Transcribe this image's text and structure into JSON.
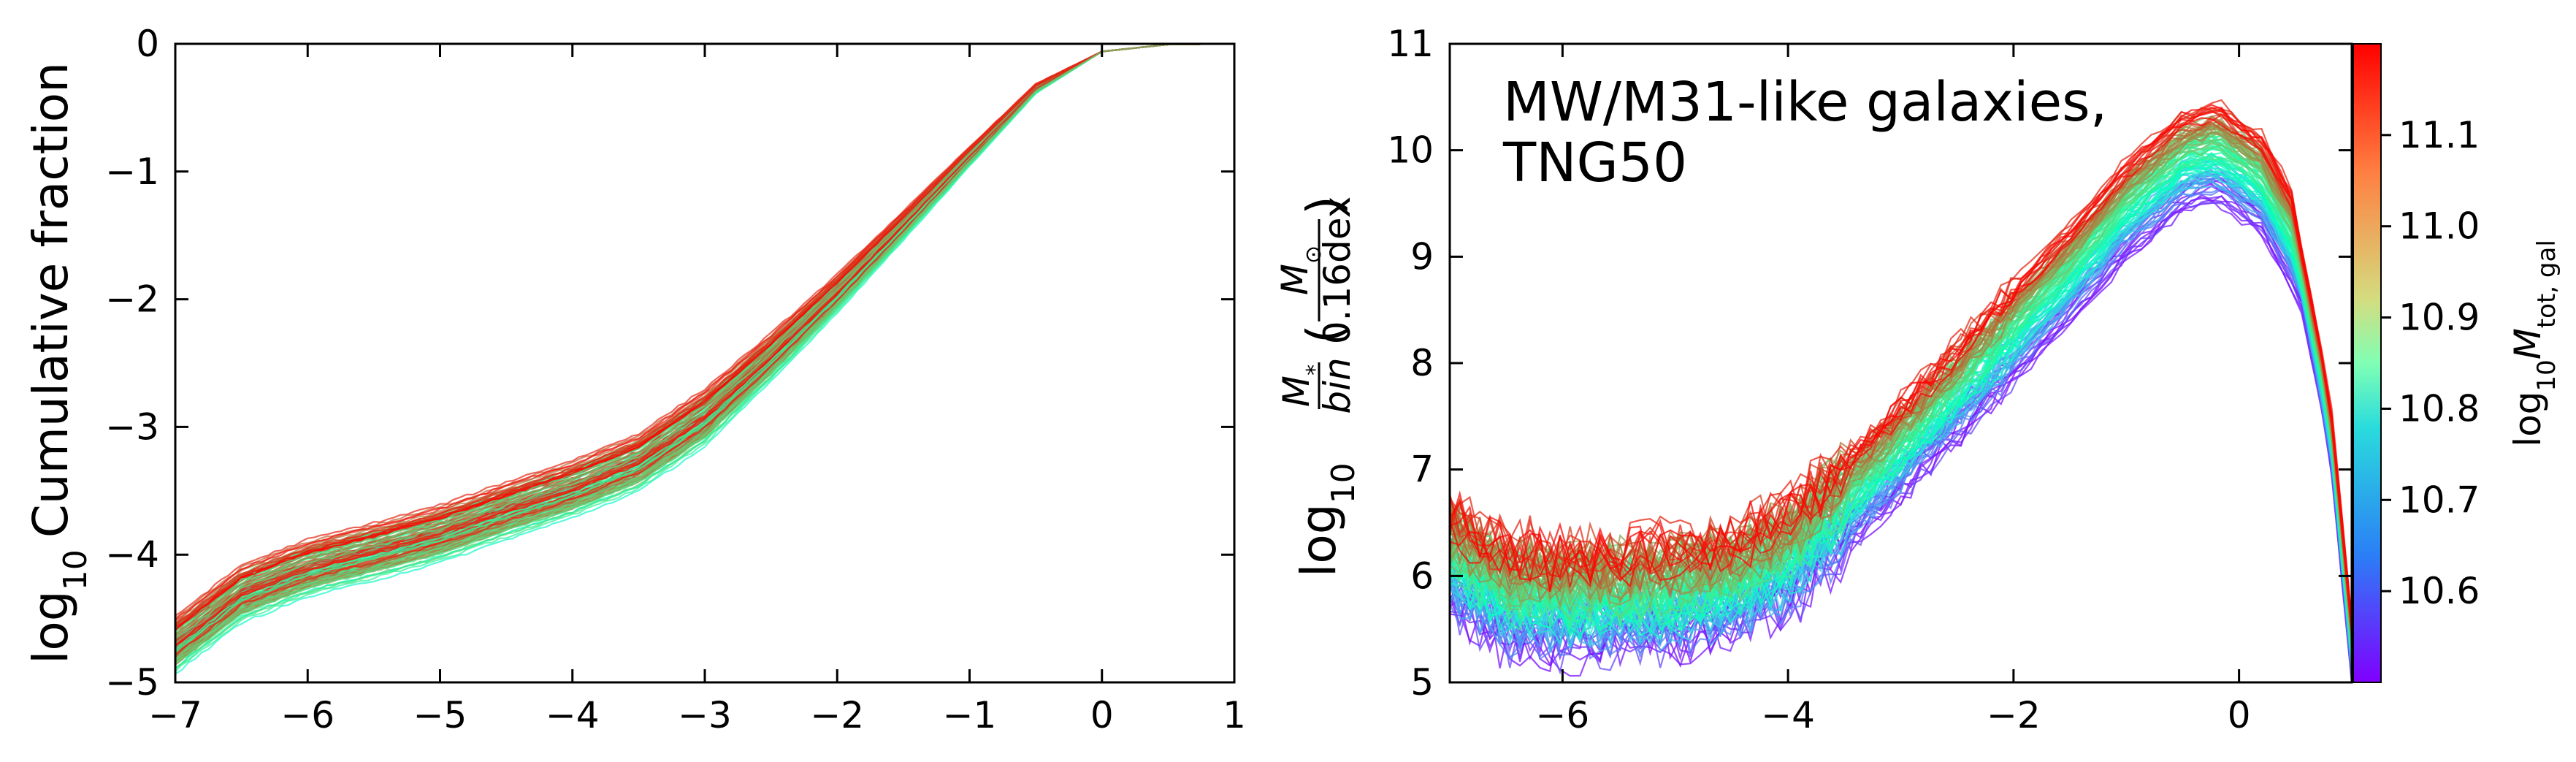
{
  "chart_data": [
    {
      "type": "line",
      "ylabel_prefix": "log",
      "ylabel_sub": "10",
      "ylabel_text": "Cumulative fraction",
      "xlim": [
        -7,
        1
      ],
      "ylim": [
        -5,
        0
      ],
      "xticks": [
        -7,
        -6,
        -5,
        -4,
        -3,
        -2,
        -1,
        0,
        1
      ],
      "yticks": [
        0,
        -1,
        -2,
        -3,
        -4,
        -5
      ],
      "xtick_labels": [
        "−7",
        "−6",
        "−5",
        "−4",
        "−3",
        "−2",
        "−1",
        "0",
        "1"
      ],
      "ytick_labels": [
        "0",
        "−1",
        "−2",
        "−3",
        "−4",
        "−5"
      ],
      "colormap": "rainbow",
      "series_count": 110,
      "median_curve": {
        "x": [
          -7,
          -6.5,
          -6,
          -5.5,
          -5,
          -4.5,
          -4,
          -3.5,
          -3,
          -2.5,
          -2,
          -1.5,
          -1,
          -0.5,
          0,
          0.5,
          1
        ],
        "y": [
          -4.7,
          -4.3,
          -4.1,
          -3.97,
          -3.83,
          -3.65,
          -3.48,
          -3.27,
          -2.92,
          -2.45,
          -1.95,
          -1.42,
          -0.88,
          -0.35,
          -0.06,
          -0.005,
          0
        ]
      }
    },
    {
      "type": "line",
      "annotation_line1": "MW/M31-like galaxies,",
      "annotation_line2": "TNG50",
      "ylabel_prefix": "log",
      "ylabel_sub": "10",
      "ylabel_frac_num": "M",
      "ylabel_frac_num_sub": "*",
      "ylabel_frac_den": "bin",
      "ylabel_paren_num": "M",
      "ylabel_paren_num_sub": "⊙",
      "ylabel_paren_den": "0.16dex",
      "xlim": [
        -7,
        1
      ],
      "ylim": [
        5,
        11
      ],
      "xticks": [
        -6,
        -4,
        -2,
        0
      ],
      "yticks": [
        5,
        6,
        7,
        8,
        9,
        10,
        11
      ],
      "xtick_labels": [
        "−6",
        "−4",
        "−2",
        "0"
      ],
      "ytick_labels": [
        "5",
        "6",
        "7",
        "8",
        "9",
        "10",
        "11"
      ],
      "colormap": "rainbow",
      "series_count": 110,
      "median_curve": {
        "x": [
          -7,
          -6.5,
          -6,
          -5.5,
          -5,
          -4.5,
          -4,
          -3.5,
          -3,
          -2.5,
          -2,
          -1.5,
          -1,
          -0.5,
          -0.2,
          0.2,
          0.5,
          0.8,
          1
        ],
        "y": [
          6.2,
          5.85,
          5.8,
          5.82,
          5.85,
          5.95,
          6.2,
          6.7,
          7.2,
          7.75,
          8.3,
          8.85,
          9.45,
          9.9,
          10.0,
          9.7,
          9.1,
          7.5,
          5.3
        ]
      },
      "colorbar": {
        "label_prefix": "log",
        "label_sub": "10",
        "label_main": "M",
        "label_main_sub": "tot, gal",
        "range": [
          10.5,
          11.2
        ],
        "ticks": [
          10.6,
          10.7,
          10.8,
          10.9,
          11.0,
          11.1
        ],
        "tick_labels": [
          "10.6",
          "10.7",
          "10.8",
          "10.9",
          "11.0",
          "11.1"
        ]
      }
    }
  ]
}
